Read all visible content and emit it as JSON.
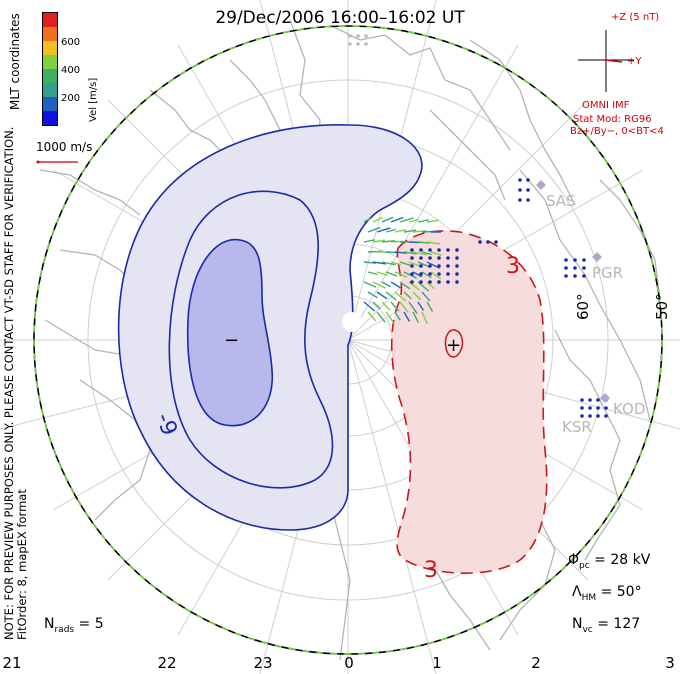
{
  "title": "29/Dec/2006 16:00–16:02 UT",
  "coords_label": "MLT coordinates",
  "colorbar": {
    "label": "Vel [m/s]",
    "ticks": [
      "600",
      "400",
      "200"
    ],
    "colors": [
      "#e02020",
      "#f07020",
      "#f0c020",
      "#80d040",
      "#40b060",
      "#30a090",
      "#2060c0",
      "#1010e0"
    ]
  },
  "ref_vector_label": "1000 m/s",
  "note": "NOTE: FOR PREVIEW PURPOSES ONLY. PLEASE CONTACT VT-SD STAFF FOR VERIFICATION.",
  "fit_order": "FitOrder: 8, mapEX format",
  "imf": {
    "z_label": "+Z (5 nT)",
    "y_label": "+Y",
    "source": "OMNI IMF",
    "stat_mod": "Stat Mod: RG96",
    "condition": "Bz+/By−, 0<BT<4"
  },
  "stations": [
    "SAS",
    "PGR",
    "KOD",
    "KSR"
  ],
  "lat_labels": [
    "60°",
    "50°"
  ],
  "contour_labels": [
    "-9",
    "3",
    "3"
  ],
  "min_marker": "−",
  "max_marker": "+",
  "stats": {
    "phi_pc": "28 kV",
    "lambda_hm": "50°",
    "n_vc": "127",
    "n_rads": "5"
  },
  "mlt_ticks": [
    "21",
    "22",
    "23",
    "0",
    "1",
    "2",
    "3"
  ],
  "colors": {
    "neg_fill_outer": "#e4e4f2",
    "neg_fill_inner": "#b8b8ec",
    "neg_contour": "#1a2aa8",
    "pos_fill": "#f6dcdc",
    "pos_contour": "#c81818",
    "boundary_green": "#70d040",
    "coast": "#b4b4b4"
  }
}
